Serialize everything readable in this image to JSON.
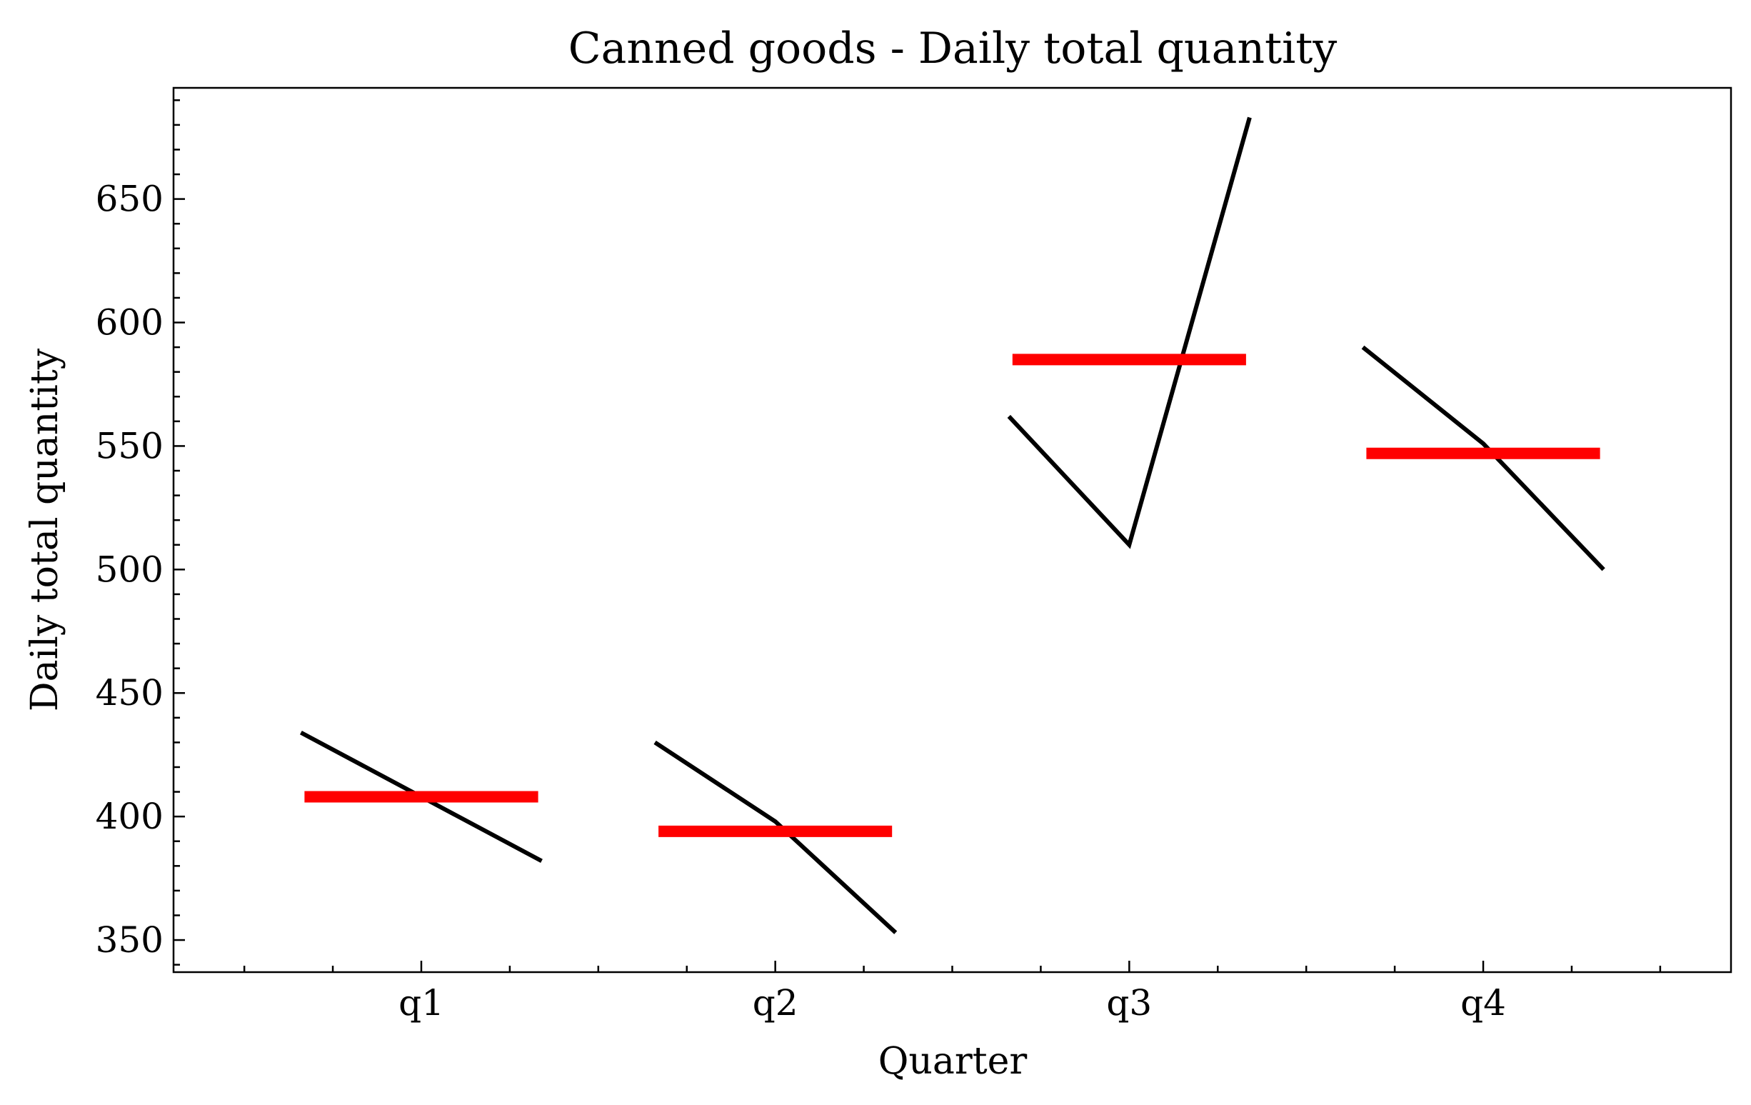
{
  "chart_data": {
    "type": "line",
    "title": "Canned goods - Daily total quantity",
    "xlabel": "Quarter",
    "ylabel": "Daily total quantity",
    "categories": [
      "q1",
      "q2",
      "q3",
      "q4"
    ],
    "ylim": [
      337,
      695
    ],
    "yticks": [
      350,
      400,
      450,
      500,
      550,
      600,
      650
    ],
    "grid": false,
    "colors": {
      "line": "#000000",
      "mean": "#ff0000"
    },
    "groups": [
      {
        "category": "q1",
        "values": [
          434,
          408,
          382
        ],
        "mean": 408
      },
      {
        "category": "q2",
        "values": [
          430,
          398,
          353
        ],
        "mean": 394
      },
      {
        "category": "q3",
        "values": [
          562,
          510,
          683
        ],
        "mean": 585
      },
      {
        "category": "q4",
        "values": [
          590,
          551,
          500
        ],
        "mean": 547
      }
    ]
  }
}
